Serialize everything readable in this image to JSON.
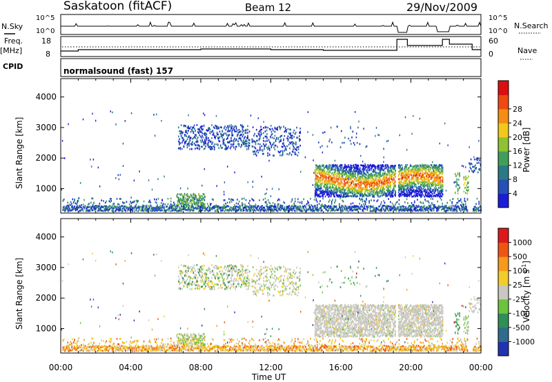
{
  "header": {
    "title": "Saskatoon (fitACF)",
    "beam": "Beam 12",
    "date": "29/Nov/2009"
  },
  "top_panels": {
    "nsky_label": "N.Sky",
    "nsearch_label": "N.Search",
    "nsky_ticks": [
      "10^5",
      "10^0"
    ],
    "nsearch_ticks": [
      "10^5",
      "10^0"
    ],
    "freq_label": "Freq.",
    "freq_unit": "[MHz]",
    "freq_ticks": [
      "18",
      "8"
    ],
    "nave_label": "Nave",
    "nave_ticks": [
      "60",
      "0"
    ],
    "cpid_label": "CPID",
    "cpid_value": "normalsound (fast) 157"
  },
  "chart_data": [
    {
      "type": "heatmap",
      "name": "power",
      "ylabel": "Slant Range [km]",
      "yticks": [
        "1000",
        "2000",
        "3000",
        "4000"
      ],
      "ylim": [
        200,
        4600
      ],
      "colorbar_label": "Power [dB]",
      "colorbar_ticks": [
        "4",
        "8",
        "12",
        "16",
        "20",
        "24",
        "28"
      ],
      "colors": [
        "#1c1cd8",
        "#2450b8",
        "#2a7a86",
        "#3f9f5a",
        "#8fc232",
        "#f2c81a",
        "#f58d12",
        "#ee4a12",
        "#dc1010"
      ]
    },
    {
      "type": "heatmap",
      "name": "velocity",
      "ylabel": "Slant Range [km]",
      "yticks": [
        "1000",
        "2000",
        "3000",
        "4000"
      ],
      "ylim": [
        200,
        4600
      ],
      "colorbar_label": "Velocity [m s^-1]",
      "colorbar_ticks": [
        "1000",
        "500",
        "100",
        "25",
        "-25",
        "-100",
        "-500",
        "-1000"
      ],
      "colors": [
        "#2133b0",
        "#2f6b8c",
        "#2f8f57",
        "#6cc43d",
        "#c8c8c0",
        "#f2cc2a",
        "#f59a1a",
        "#ee5512",
        "#dd1a1a"
      ]
    }
  ],
  "xaxis": {
    "label": "Time UT",
    "ticks": [
      "00:00",
      "04:00",
      "08:00",
      "12:00",
      "16:00",
      "20:00",
      "00:00"
    ]
  }
}
